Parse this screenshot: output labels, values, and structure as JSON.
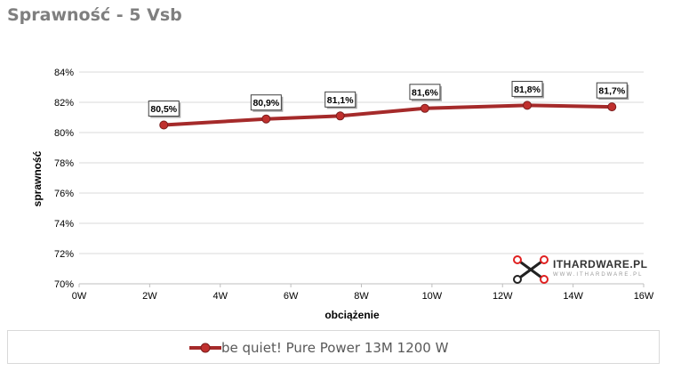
{
  "page_title": "Sprawność - 5 Vsb",
  "colors": {
    "series": "#a52a2a",
    "marker_fill": "#c0302e",
    "grid": "#d9d9d9"
  },
  "watermark": {
    "text": "ITHARDWARE.PL",
    "subtext": "WWW.ITHARDWARE.PL"
  },
  "chart_data": {
    "type": "line",
    "title": "Sprawność - 5 Vsb",
    "xlabel": "obciążenie",
    "ylabel": "sprawność",
    "xlim": [
      0,
      16
    ],
    "ylim": [
      70,
      84
    ],
    "x_ticks": [
      "0W",
      "2W",
      "4W",
      "6W",
      "8W",
      "10W",
      "12W",
      "14W",
      "16W"
    ],
    "y_ticks": [
      "70%",
      "72%",
      "74%",
      "76%",
      "78%",
      "80%",
      "82%",
      "84%"
    ],
    "grid": true,
    "legend_position": "bottom",
    "series": [
      {
        "name": "be quiet! Pure Power 13M 1200 W",
        "x": [
          2.4,
          5.3,
          7.4,
          9.8,
          12.7,
          15.1
        ],
        "y": [
          80.5,
          80.9,
          81.1,
          81.6,
          81.8,
          81.7
        ],
        "labels": [
          "80,5%",
          "80,9%",
          "81,1%",
          "81,6%",
          "81,8%",
          "81,7%"
        ]
      }
    ]
  }
}
